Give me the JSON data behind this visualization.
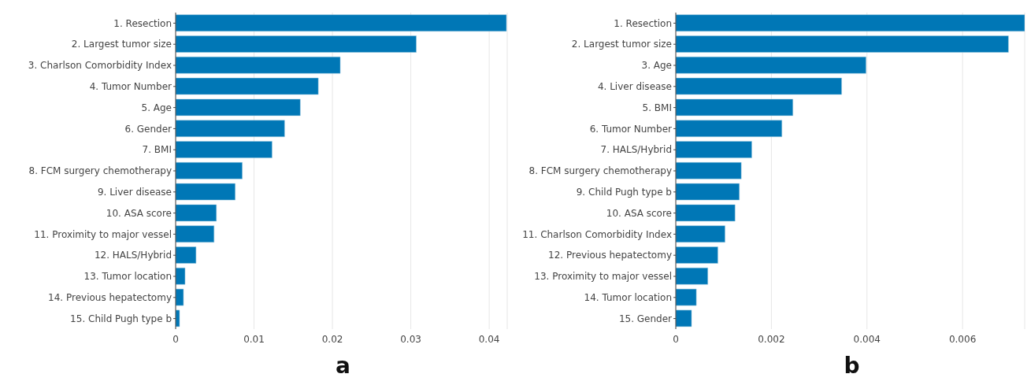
{
  "chart_data": [
    {
      "type": "bar",
      "orientation": "horizontal",
      "xlabel": "a",
      "categories": [
        "1. Resection",
        "2. Largest tumor size",
        "3. Charlson Comorbidity Index",
        "4. Tumor Number",
        "5. Age",
        "6. Gender",
        "7. BMI",
        "8. FCM surgery chemotherapy",
        "9. Liver disease",
        "10. ASA score",
        "11. Proximity to major vessel",
        "12. HALS/Hybrid",
        "13. Tumor location",
        "14. Previous hepatectomy",
        "15. Child Pugh type b"
      ],
      "values": [
        0.0422,
        0.0307,
        0.021,
        0.0182,
        0.0159,
        0.0139,
        0.0123,
        0.0085,
        0.0076,
        0.0052,
        0.0049,
        0.0026,
        0.0012,
        0.001,
        0.0005
      ],
      "color": "#0077b6",
      "xlim": [
        0,
        0.0423
      ],
      "xticks": [
        0,
        0.01,
        0.02,
        0.03,
        0.04
      ],
      "grid": "x"
    },
    {
      "type": "bar",
      "orientation": "horizontal",
      "xlabel": "b",
      "categories": [
        "1. Resection",
        "2. Largest tumor size",
        "3. Age",
        "4. Liver disease",
        "5. BMI",
        "6. Tumor Number",
        "7. HALS/Hybrid",
        "8. FCM surgery chemotherapy",
        "9. Child Pugh type b",
        "10. ASA score",
        "11. Charlson Comorbidity Index",
        "12. Previous hepatectomy",
        "13. Proximity to major vessel",
        "14. Tumor location",
        "15. Gender"
      ],
      "values": [
        0.0073,
        0.00696,
        0.00398,
        0.00347,
        0.00245,
        0.00222,
        0.00159,
        0.00137,
        0.00133,
        0.00124,
        0.00103,
        0.00088,
        0.00067,
        0.00043,
        0.00033
      ],
      "color": "#0077b6",
      "xlim": [
        0,
        0.0073
      ],
      "xticks": [
        0,
        0.002,
        0.004,
        0.006
      ],
      "grid": "x"
    }
  ]
}
